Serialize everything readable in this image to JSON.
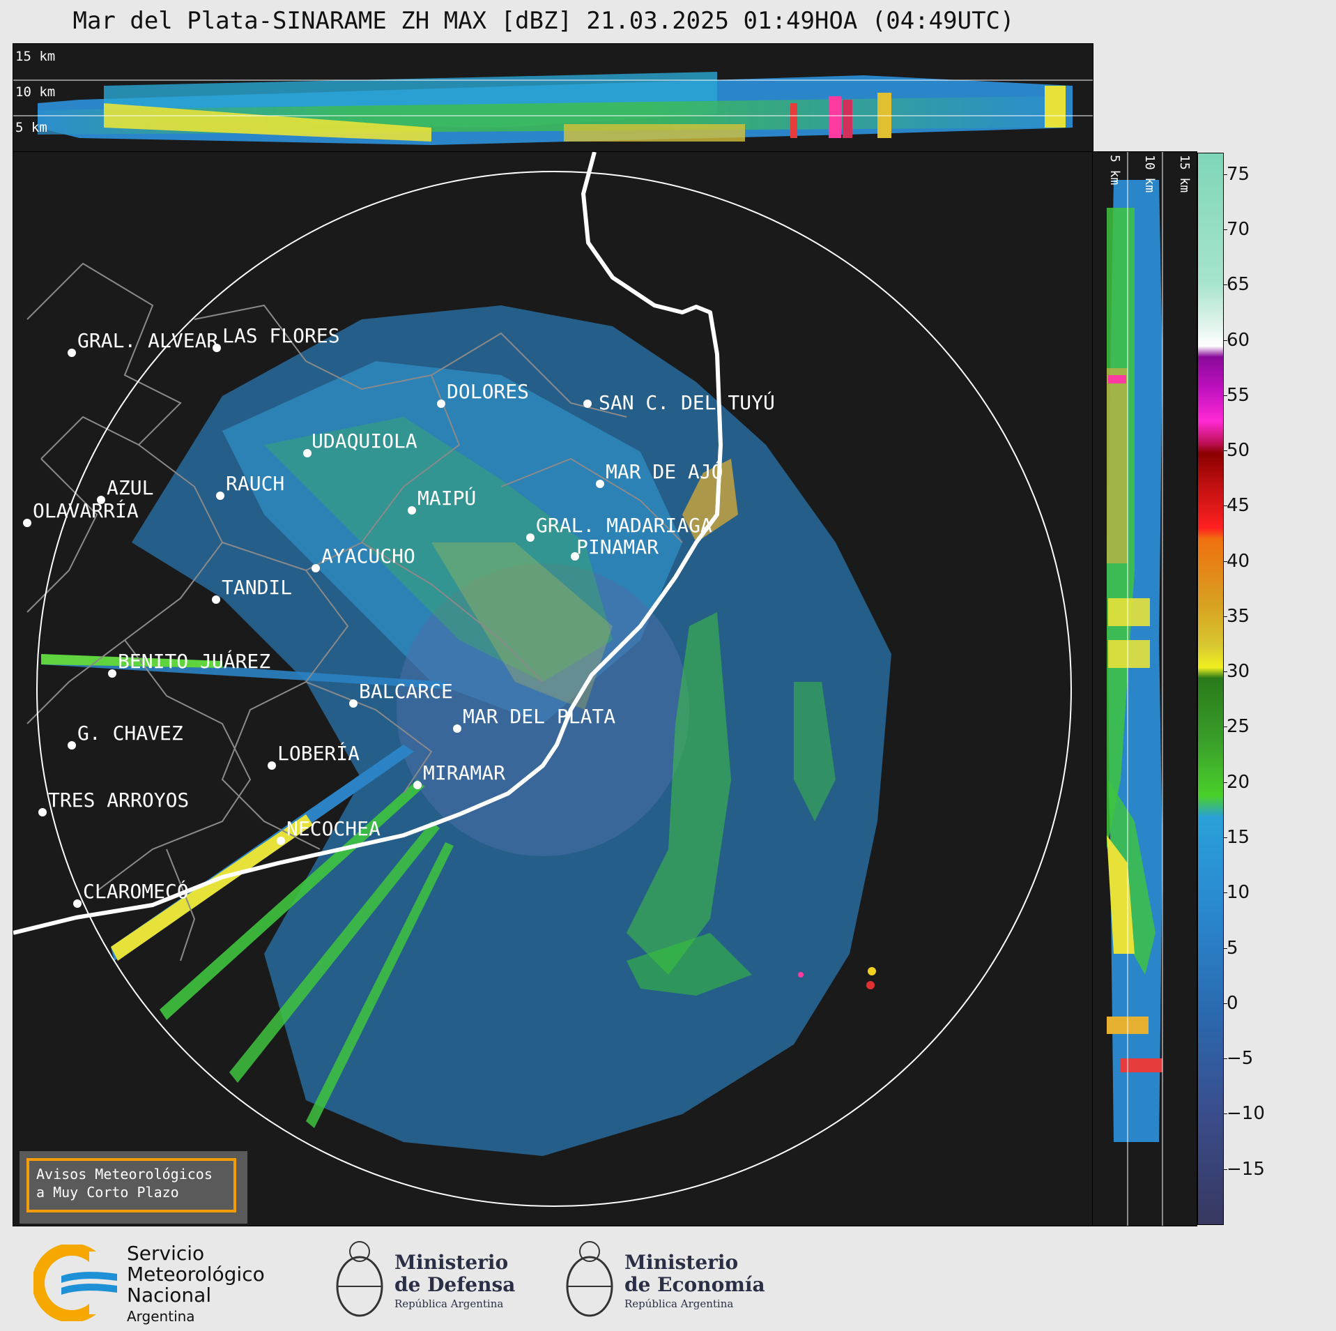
{
  "title": "Mar del Plata-SINARAME ZH MAX [dBZ] 21.03.2025 01:49HOA (04:49UTC)",
  "top_panel": {
    "height_labels": [
      "15 km",
      "10 km",
      "5 km"
    ]
  },
  "right_panel": {
    "height_labels": [
      "5 km",
      "10 km",
      "15 km"
    ]
  },
  "colorbar": {
    "ticks": [
      "75",
      "70",
      "65",
      "60",
      "55",
      "50",
      "45",
      "40",
      "35",
      "30",
      "25",
      "20",
      "15",
      "10",
      "5",
      "0",
      "−5",
      "−10",
      "−15"
    ],
    "range": [
      -20,
      77
    ]
  },
  "cities": [
    {
      "name": "GRAL. ALVEAR"
    },
    {
      "name": "LAS FLORES"
    },
    {
      "name": "DOLORES"
    },
    {
      "name": "SAN C. DEL TUYÚ"
    },
    {
      "name": "UDAQUIOLA"
    },
    {
      "name": "MAR DE AJÓ"
    },
    {
      "name": "AZUL"
    },
    {
      "name": "RAUCH"
    },
    {
      "name": "MAIPÚ"
    },
    {
      "name": "OLAVARRÍA"
    },
    {
      "name": "GRAL. MADARIAGA"
    },
    {
      "name": "PINAMAR"
    },
    {
      "name": "AYACUCHO"
    },
    {
      "name": "TANDIL"
    },
    {
      "name": "BENITO JUÁREZ"
    },
    {
      "name": "BALCARCE"
    },
    {
      "name": "MAR DEL PLATA"
    },
    {
      "name": "G. CHAVEZ"
    },
    {
      "name": "LOBERÍA"
    },
    {
      "name": "MIRAMAR"
    },
    {
      "name": "TRES ARROYOS"
    },
    {
      "name": "NECOCHEA"
    },
    {
      "name": "CLAROMECÓ"
    }
  ],
  "alert_box": {
    "line1": "Avisos Meteorológicos",
    "line2": "a Muy Corto Plazo"
  },
  "footer": {
    "smn": {
      "line1": "Servicio",
      "line2": "Meteorológico",
      "line3": "Nacional",
      "line4": "Argentina"
    },
    "defensa": {
      "line1": "Ministerio",
      "line2": "de Defensa",
      "line3": "República Argentina"
    },
    "economia": {
      "line1": "Ministerio",
      "line2": "de Economía",
      "line3": "República Argentina"
    }
  },
  "colors": {
    "background": "#1a1a1a",
    "coast": "#ffffff",
    "alert_border": "#f59c0b",
    "smn_orange": "#f6a800",
    "smn_blue": "#1e90d6"
  }
}
